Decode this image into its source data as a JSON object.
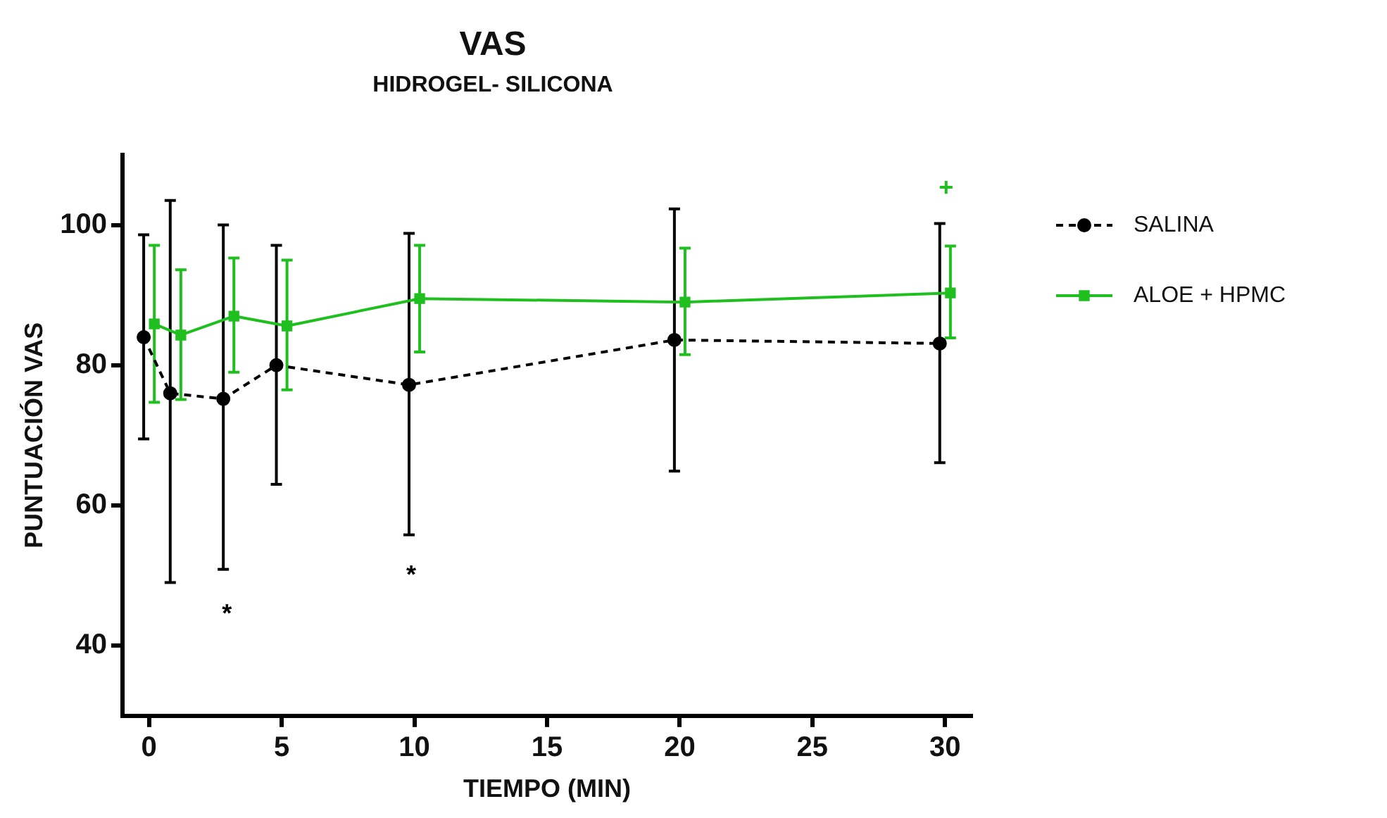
{
  "chart_data": {
    "type": "line",
    "title": "VAS",
    "subtitle": "HIDROGEL- SILICONA",
    "xlabel": "TIEMPO (MIN)",
    "ylabel": "PUNTUACIÓN VAS",
    "xlim": [
      -1,
      31
    ],
    "xticks": [
      0,
      5,
      10,
      15,
      20,
      25,
      30
    ],
    "ylim": [
      30,
      110
    ],
    "yticks": [
      40,
      60,
      80,
      100
    ],
    "grid": false,
    "legend": "top right",
    "series": [
      {
        "name": "SALINA",
        "color": "#000000",
        "marker": "circle",
        "line_style": "dashed",
        "x": [
          -0.2,
          0.8,
          2.8,
          4.8,
          9.8,
          19.8,
          29.8
        ],
        "values": [
          84,
          76,
          75.2,
          80,
          77.2,
          83.6,
          83.1
        ],
        "errors": [
          [
            69.5,
            98.6
          ],
          [
            49,
            103.5
          ],
          [
            50.9,
            100
          ],
          [
            63,
            97.1
          ],
          [
            55.8,
            98.8
          ],
          [
            64.9,
            102.3
          ],
          [
            66.1,
            100.2
          ]
        ]
      },
      {
        "name": "ALOE + HPMC",
        "color": "#1fbf1f",
        "marker": "square",
        "line_style": "solid",
        "x": [
          0.2,
          1.2,
          3.2,
          5.2,
          10.2,
          20.2,
          30.2
        ],
        "values": [
          85.9,
          84.3,
          87,
          85.6,
          89.5,
          89,
          90.3
        ],
        "errors": [
          [
            74.7,
            97.1
          ],
          [
            75.1,
            93.6
          ],
          [
            79,
            95.3
          ],
          [
            76.5,
            95
          ],
          [
            81.9,
            97.1
          ],
          [
            81.5,
            96.7
          ],
          [
            83.9,
            97
          ]
        ]
      }
    ],
    "annotations": [
      "*",
      "*",
      "+"
    ]
  }
}
